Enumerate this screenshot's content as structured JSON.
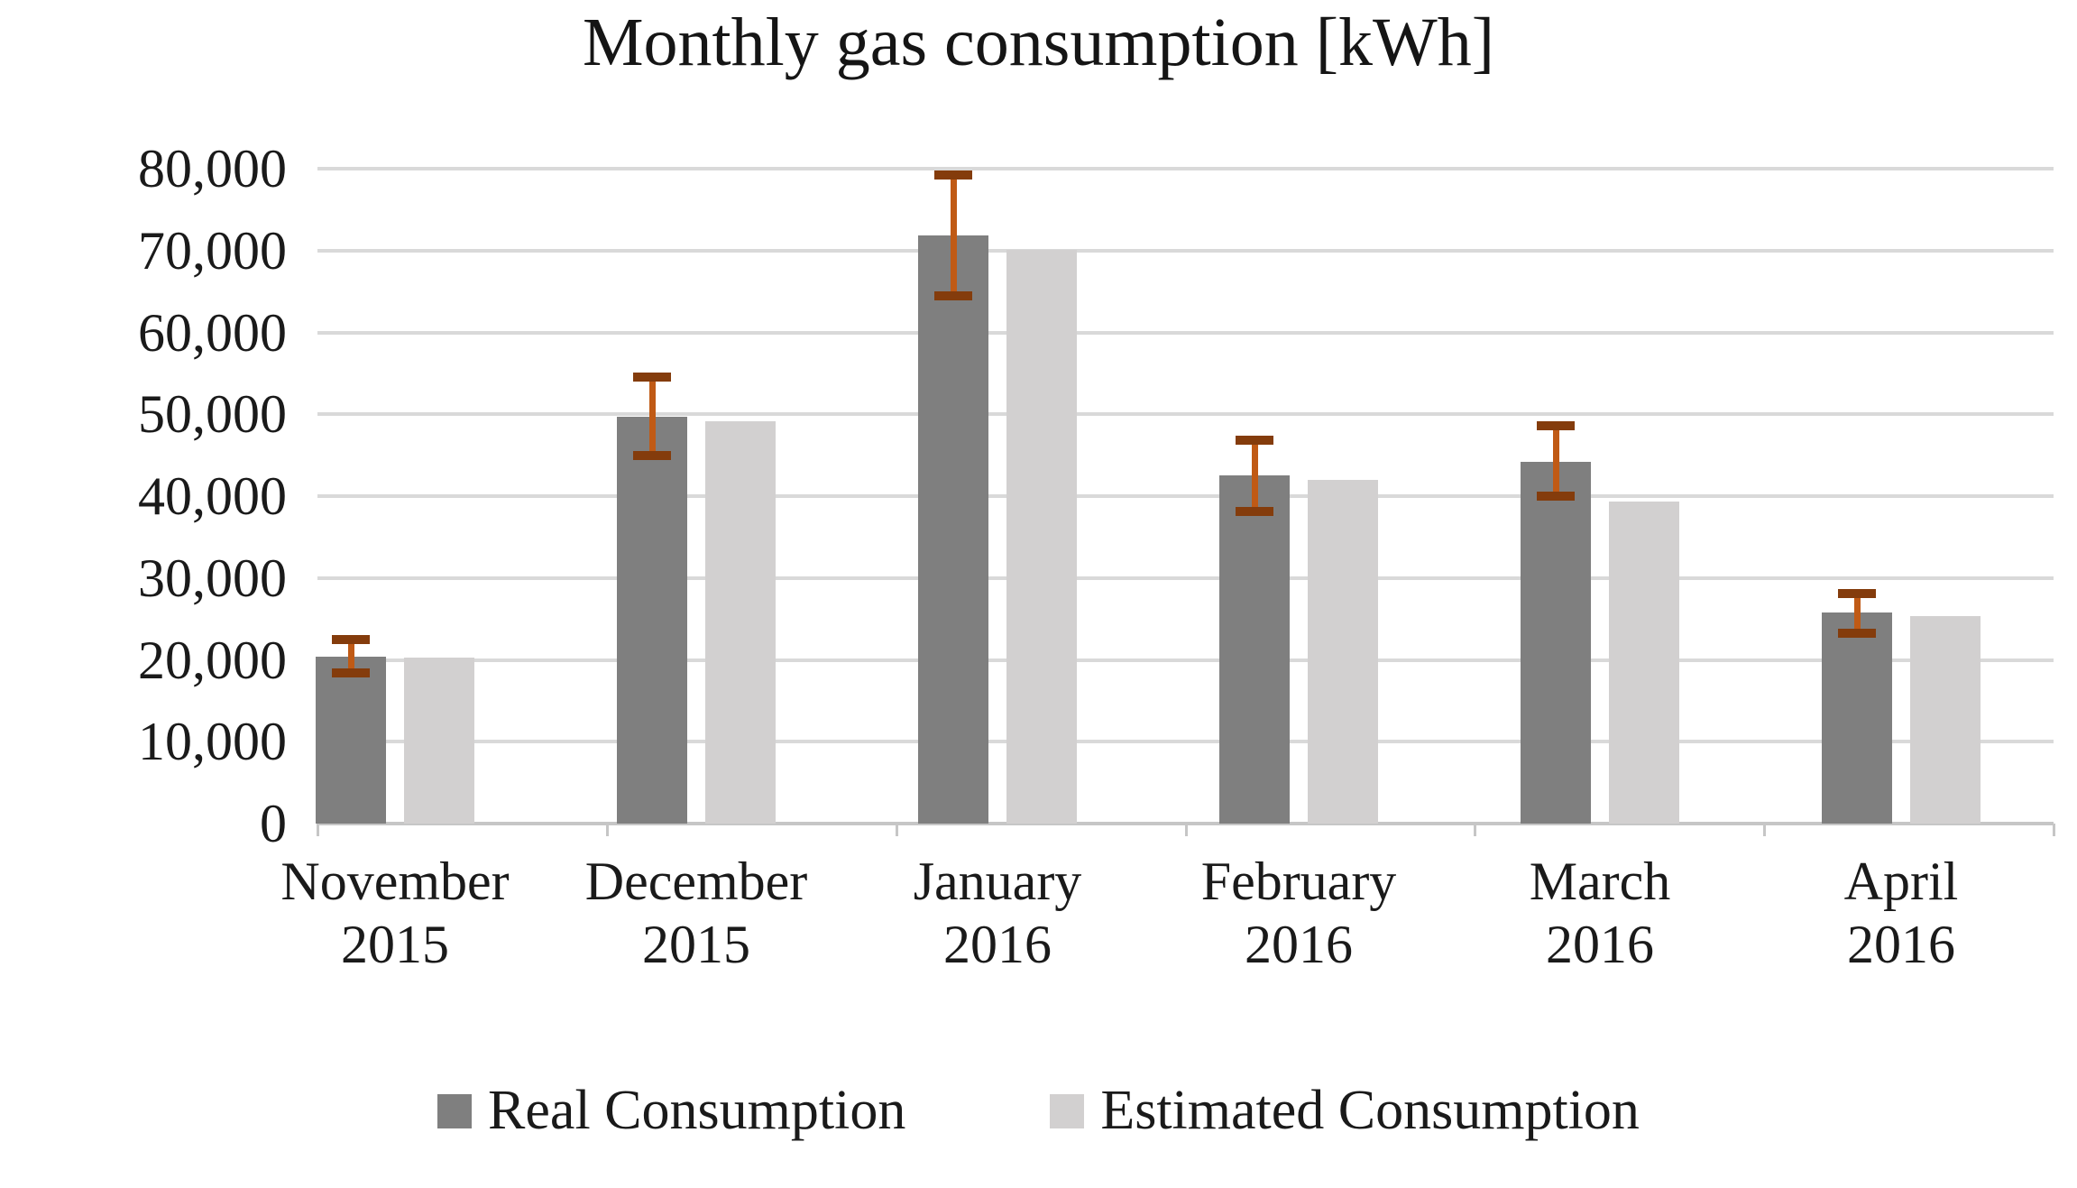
{
  "title": "Monthly gas consumption [kWh]",
  "colors": {
    "real_bar": "#7f7f7f",
    "estimated_bar": "#d2d0d0",
    "gridline": "#d9d9d9",
    "axis_line": "#c6c6c6",
    "error_bar_stem": "#c05a15",
    "error_bar_cap": "#843c0c",
    "text": "#1a1a1a"
  },
  "y_axis": {
    "tick_labels": [
      "80,000",
      "70,000",
      "60,000",
      "50,000",
      "40,000",
      "30,000",
      "20,000",
      "10,000",
      "0"
    ],
    "min": 0,
    "max": 80000,
    "step": 10000
  },
  "legend": {
    "items": [
      {
        "label": "Real Consumption",
        "color_key": "real_bar"
      },
      {
        "label": "Estimated Consumption",
        "color_key": "estimated_bar"
      }
    ]
  },
  "chart_data": {
    "type": "bar",
    "title": "Monthly gas consumption [kWh]",
    "categories": [
      {
        "month": "November",
        "year": "2015"
      },
      {
        "month": "December",
        "year": "2015"
      },
      {
        "month": "January",
        "year": "2016"
      },
      {
        "month": "February",
        "year": "2016"
      },
      {
        "month": "March",
        "year": "2016"
      },
      {
        "month": "April",
        "year": "2016"
      }
    ],
    "series": [
      {
        "name": "Real Consumption",
        "values": [
          20400,
          49700,
          71900,
          42500,
          44200,
          25800
        ],
        "error_low": [
          18400,
          45000,
          64500,
          38100,
          40000,
          23300
        ],
        "error_high": [
          22600,
          54700,
          79300,
          46900,
          48700,
          28200
        ]
      },
      {
        "name": "Estimated Consumption",
        "values": [
          20300,
          49200,
          70100,
          42000,
          39300,
          25300
        ]
      }
    ],
    "ylabel": "",
    "xlabel": "",
    "ylim": [
      0,
      80000
    ],
    "grid": true,
    "legend_position": "bottom"
  },
  "layout_note_values_unit": "kWh"
}
